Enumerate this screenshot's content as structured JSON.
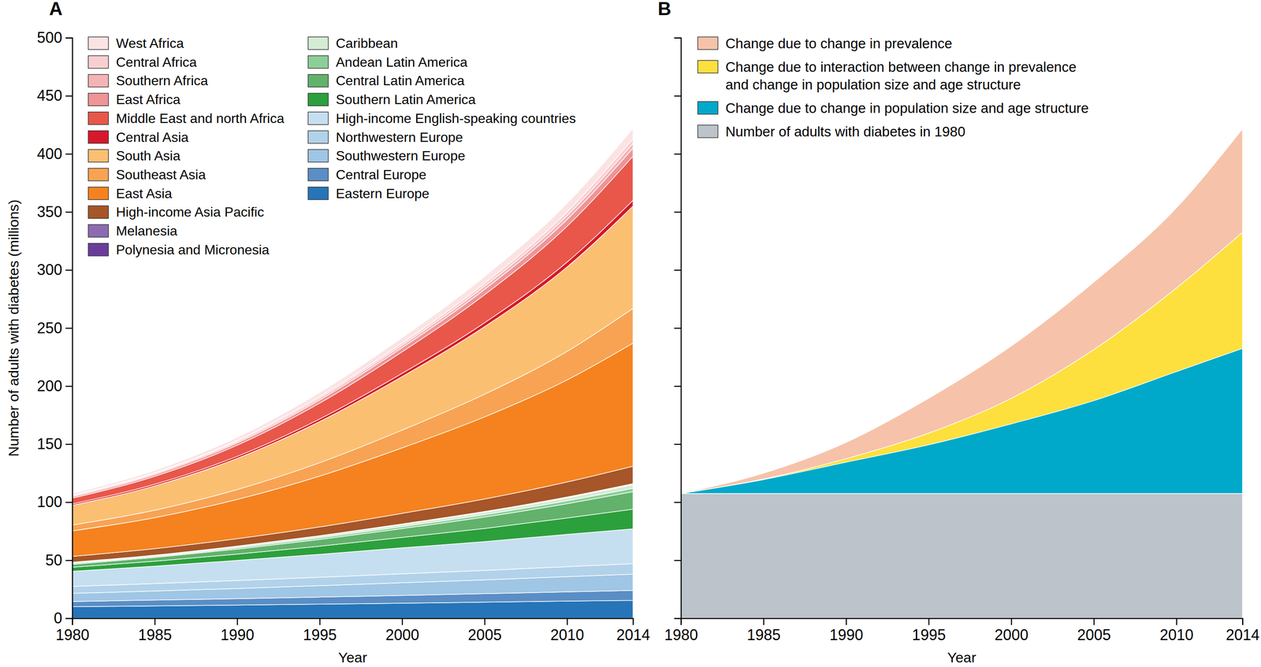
{
  "chart_data": [
    {
      "type": "area",
      "title": "A",
      "stacked": true,
      "legend": "top-left",
      "x_label": "Year",
      "y_label": "Number of adults with diabetes (millions)",
      "xlim": [
        1980,
        2014
      ],
      "xticks": [
        1980,
        1985,
        1990,
        1995,
        2000,
        2005,
        2010,
        2014
      ],
      "ylim": [
        0,
        500
      ],
      "yticks": [
        0,
        50,
        100,
        150,
        200,
        250,
        300,
        350,
        400,
        450,
        500
      ],
      "x": [
        1980,
        1985,
        1990,
        1995,
        2000,
        2005,
        2010,
        2014
      ],
      "series": [
        {
          "name": "Eastern Europe",
          "color": "#2675b8",
          "values": [
            10,
            10.7,
            11.4,
            12.2,
            13.0,
            13.9,
            14.8,
            15.5
          ]
        },
        {
          "name": "Central Europe",
          "color": "#5b8ec5",
          "values": [
            4.5,
            5.0,
            5.5,
            6.1,
            6.7,
            7.3,
            8.0,
            8.5
          ]
        },
        {
          "name": "Southwestern Europe",
          "color": "#9fc6e5",
          "values": [
            7,
            7.8,
            8.8,
            9.8,
            10.9,
            11.9,
            13.1,
            14
          ]
        },
        {
          "name": "Northwestern Europe",
          "color": "#b2d2ea",
          "values": [
            6,
            6.4,
            6.8,
            7.2,
            7.7,
            8.1,
            8.6,
            9
          ]
        },
        {
          "name": "High-income English-speaking countries",
          "color": "#c6dff0",
          "values": [
            13,
            15.0,
            17.4,
            19.8,
            22.4,
            24.9,
            27.8,
            30
          ]
        },
        {
          "name": "Southern Latin America",
          "color": "#2ca03c",
          "values": [
            3.5,
            4.3,
            5.4,
            7.0,
            9.0,
            11.3,
            14.1,
            17
          ]
        },
        {
          "name": "Central Latin America",
          "color": "#62b26c",
          "values": [
            2.5,
            3.2,
            4.3,
            5.8,
            7.6,
            9.8,
            12.3,
            15
          ]
        },
        {
          "name": "Andean Latin America",
          "color": "#8ccf98",
          "values": [
            0.8,
            0.9,
            1.1,
            1.4,
            1.7,
            2.1,
            2.5,
            3
          ]
        },
        {
          "name": "Caribbean",
          "color": "#d4ecd4",
          "values": [
            0.8,
            0.9,
            1.1,
            1.4,
            1.7,
            2.1,
            2.5,
            3
          ]
        },
        {
          "name": "Polynesia and Micronesia",
          "color": "#6a3d9a",
          "values": [
            0.1,
            0.1,
            0.2,
            0.2,
            0.3,
            0.3,
            0.4,
            0.5
          ]
        },
        {
          "name": "Melanesia",
          "color": "#8c6bb1",
          "values": [
            0.1,
            0.1,
            0.2,
            0.2,
            0.3,
            0.3,
            0.4,
            0.5
          ]
        },
        {
          "name": "High-income Asia Pacific",
          "color": "#a65628",
          "values": [
            5,
            5.6,
            6.4,
            7.6,
            9.1,
            10.8,
            12.9,
            15
          ]
        },
        {
          "name": "East Asia",
          "color": "#f5821f",
          "values": [
            22,
            26.7,
            33.8,
            43.8,
            56.4,
            70.7,
            87.9,
            106
          ]
        },
        {
          "name": "Southeast Asia",
          "color": "#f7a353",
          "values": [
            5,
            6.4,
            8.5,
            11.5,
            15.3,
            19.5,
            24.6,
            30
          ]
        },
        {
          "name": "South Asia",
          "color": "#fbbf72",
          "values": [
            17,
            21.0,
            26.9,
            35.5,
            46.1,
            58.2,
            72.7,
            88
          ]
        },
        {
          "name": "Central Asia",
          "color": "#d7182a",
          "values": [
            1.2,
            1.4,
            1.7,
            2.2,
            2.8,
            3.4,
            4.2,
            5
          ]
        },
        {
          "name": "Middle East and north Africa",
          "color": "#e8574a",
          "values": [
            5,
            6.8,
            9.6,
            13.6,
            18.5,
            24.1,
            30.9,
            38
          ]
        },
        {
          "name": "East Africa",
          "color": "#ef9497",
          "values": [
            1.2,
            1.5,
            2.0,
            2.7,
            3.6,
            4.6,
            5.8,
            7
          ]
        },
        {
          "name": "Southern Africa",
          "color": "#f4b4b6",
          "values": [
            0.8,
            1.0,
            1.2,
            1.6,
            2.1,
            2.7,
            3.3,
            4
          ]
        },
        {
          "name": "Central Africa",
          "color": "#f8cfd0",
          "values": [
            0.5,
            0.7,
            1.0,
            1.4,
            1.9,
            2.5,
            3.2,
            4
          ]
        },
        {
          "name": "West Africa",
          "color": "#fbe3e4",
          "values": [
            1.5,
            1.9,
            2.6,
            3.5,
            4.6,
            5.9,
            7.4,
            9
          ]
        }
      ]
    },
    {
      "type": "area",
      "title": "B",
      "stacked": true,
      "legend": "top-left",
      "tick_labels": "x",
      "x_label": "Year",
      "xlim": [
        1980,
        2014
      ],
      "xticks": [
        1980,
        1985,
        1990,
        1995,
        2000,
        2005,
        2010,
        2014
      ],
      "ylim": [
        0,
        500
      ],
      "yticks": [
        0,
        50,
        100,
        150,
        200,
        250,
        300,
        350,
        400,
        450,
        500
      ],
      "x": [
        1980,
        1985,
        1990,
        1995,
        2000,
        2005,
        2010,
        2014
      ],
      "series": [
        {
          "name": "Number of adults with diabetes in 1980",
          "color": "#bcc3ca",
          "values": [
            107.5,
            107.5,
            107.5,
            107.5,
            107.5,
            107.5,
            107.5,
            107.5
          ]
        },
        {
          "name": "Change due to change in population size and age structure",
          "color": "#00a9c9",
          "values": [
            0,
            12,
            27,
            42,
            60,
            80,
            105,
            125
          ]
        },
        {
          "name": "Change due to interaction between change in prevalence and change in population size and age structure",
          "color": "#fde03e",
          "values": [
            0,
            0.5,
            3,
            10,
            22,
            44,
            72,
            100
          ]
        },
        {
          "name": "Change due to change in prevalence",
          "color": "#f6c2aa",
          "values": [
            0,
            5,
            14,
            30,
            45,
            58,
            69,
            89
          ]
        }
      ]
    }
  ]
}
